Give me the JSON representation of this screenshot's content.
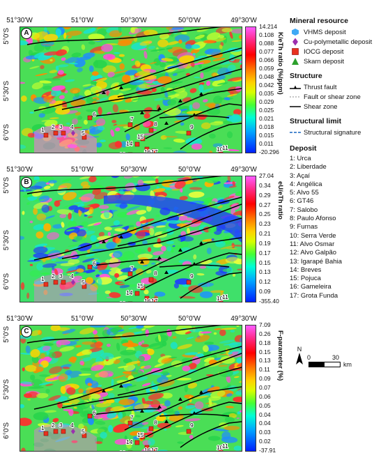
{
  "longitude_ticks": [
    "51°30'W",
    "51°0'W",
    "50°30'W",
    "50°0'W",
    "49°30'W"
  ],
  "latitude_ticks": [
    "5°0'S",
    "5°30'S",
    "6°0'S"
  ],
  "panels": [
    {
      "letter": "A",
      "colorbar_title": "K/eTh ratio (%/ppm)",
      "colorbar_values": [
        "14.214",
        "0.108",
        "0.088",
        "0.077",
        "0.066",
        "0.059",
        "0.048",
        "0.042",
        "0.035",
        "0.029",
        "0.025",
        "0.021",
        "0.018",
        "0.015",
        "0.011",
        "-20.296"
      ]
    },
    {
      "letter": "B",
      "colorbar_title": "eU/eTh ratio",
      "colorbar_values": [
        "27.04",
        "0.34",
        "0.29",
        "0.27",
        "0.25",
        "0.23",
        "0.21",
        "0.19",
        "0.17",
        "0.15",
        "0.13",
        "0.12",
        "0.09",
        "-355.40"
      ]
    },
    {
      "letter": "C",
      "colorbar_title": "F-parameter (%)",
      "colorbar_values": [
        "7.09",
        "0.26",
        "0.18",
        "0.15",
        "0.13",
        "0.11",
        "0.09",
        "0.07",
        "0.06",
        "0.05",
        "0.04",
        "0.04",
        "0.03",
        "0.02",
        "-37.91"
      ]
    }
  ],
  "legend": {
    "mineral_title": "Mineral resource",
    "minerals": [
      {
        "label": "VHMS deposit",
        "icon": "hexagon",
        "color": "#3fa9f5"
      },
      {
        "label": "Cu-polymetallic deposit",
        "icon": "diamond",
        "color": "#9b2fae"
      },
      {
        "label": "IOCG deposit",
        "icon": "square",
        "color": "#e8321e"
      },
      {
        "label": "Skarn deposit",
        "icon": "triangle",
        "color": "#2ca02c"
      }
    ],
    "structure_title": "Structure",
    "structures": [
      {
        "label": "Thrust fault",
        "icon": "thrust-fault"
      },
      {
        "label": "Fault or shear zone",
        "icon": "dashed-line"
      },
      {
        "label": "Shear zone",
        "icon": "solid-line"
      }
    ],
    "limit_title": "Structural limit",
    "limits": [
      {
        "label": "Structural signature",
        "icon": "blue-dashed-line"
      }
    ],
    "deposit_title": "Deposit",
    "deposits": [
      "1: Urca",
      "2: Liberdade",
      "3: Açaí",
      "4: Angélica",
      "5: Alvo 55",
      "6: GT46",
      "7: Salobo",
      "8: Paulo Afonso",
      "9: Furnas",
      "10: Serra Verde",
      "11: Alvo Osmar",
      "12: Alvo Galpão",
      "13: Igarapé Bahia",
      "14: Breves",
      "15: Pojuca",
      "16: Gameleira",
      "17: Grota Funda"
    ]
  },
  "north_label": "N",
  "scalebar": {
    "start": "0",
    "end": "30",
    "unit": "km"
  },
  "deposit_markers": [
    {
      "id": "1",
      "type": "IOCG"
    },
    {
      "id": "2",
      "type": "IOCG"
    },
    {
      "id": "3",
      "type": "IOCG"
    },
    {
      "id": "4",
      "type": "Cu-polymetallic"
    },
    {
      "id": "5",
      "type": "IOCG"
    },
    {
      "id": "6",
      "type": "IOCG"
    },
    {
      "id": "7",
      "type": "IOCG"
    },
    {
      "id": "8",
      "type": "IOCG"
    },
    {
      "id": "9",
      "type": "IOCG"
    },
    {
      "id": "10",
      "type": "IOCG"
    },
    {
      "id": "11",
      "type": "IOCG"
    },
    {
      "id": "12",
      "type": "IOCG"
    },
    {
      "id": "13",
      "type": "IOCG"
    },
    {
      "id": "14",
      "type": "IOCG"
    },
    {
      "id": "15",
      "type": "IOCG"
    },
    {
      "id": "16",
      "type": "IOCG"
    },
    {
      "id": "17",
      "type": "IOCG"
    }
  ]
}
